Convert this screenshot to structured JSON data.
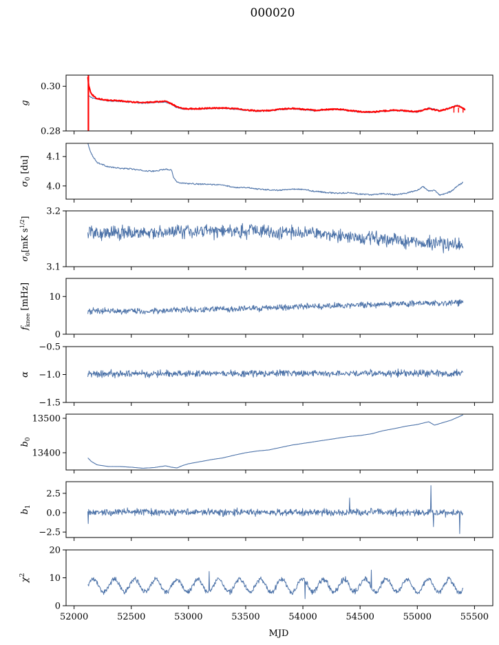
{
  "figure": {
    "title": "000020",
    "xlabel": "MJD",
    "xlim": [
      51930,
      55660
    ],
    "xticks": [
      52000,
      52500,
      53000,
      53500,
      54000,
      54500,
      55000,
      55500
    ],
    "xtick_labels": [
      "52000",
      "52500",
      "53000",
      "53500",
      "54000",
      "54500",
      "55000",
      "55500"
    ],
    "series_color": "#4c72a8",
    "fit_color": "#ff0000"
  },
  "chart_data": [
    {
      "id": "gain",
      "type": "line",
      "ylabel": "g",
      "ylim": [
        0.28,
        0.305
      ],
      "yticks": [
        0.28,
        0.3
      ],
      "ytick_labels": [
        "0.28",
        "0.30"
      ],
      "x_range": [
        52120,
        55420
      ],
      "series": [
        {
          "color": "#4c72a8",
          "x": [
            52120,
            52150,
            52200,
            52300,
            52400,
            52500,
            52600,
            52700,
            52800,
            52850,
            52900,
            52950,
            53000,
            53100,
            53200,
            53300,
            53400,
            53500,
            53600,
            53700,
            53800,
            53900,
            54000,
            54100,
            54200,
            54300,
            54400,
            54500,
            54600,
            54700,
            54800,
            54900,
            55000,
            55100,
            55150,
            55200,
            55300,
            55350,
            55400,
            55420
          ],
          "y": [
            0.296,
            0.295,
            0.2943,
            0.2935,
            0.2933,
            0.2928,
            0.2925,
            0.2928,
            0.293,
            0.292,
            0.2905,
            0.2898,
            0.2897,
            0.2898,
            0.29,
            0.2902,
            0.2898,
            0.2893,
            0.2889,
            0.289,
            0.2896,
            0.29,
            0.2895,
            0.289,
            0.2895,
            0.2897,
            0.289,
            0.2885,
            0.2883,
            0.2888,
            0.2892,
            0.2888,
            0.2885,
            0.2903,
            0.2897,
            0.289,
            0.2905,
            0.2915,
            0.29,
            0.2895
          ]
        },
        {
          "color": "#ff0000",
          "x": [
            52120,
            52130,
            52150,
            52200,
            52300,
            52400,
            52500,
            52600,
            52700,
            52800,
            52850,
            52900,
            52950,
            53000,
            53100,
            53200,
            53300,
            53400,
            53500,
            53600,
            53700,
            53800,
            53900,
            54000,
            54100,
            54200,
            54300,
            54400,
            54500,
            54600,
            54700,
            54800,
            54900,
            55000,
            55100,
            55200,
            55300,
            55350,
            55400,
            55420
          ],
          "y": [
            0.304,
            0.3,
            0.2965,
            0.2945,
            0.2937,
            0.2935,
            0.293,
            0.2927,
            0.293,
            0.2932,
            0.2922,
            0.2908,
            0.29,
            0.2899,
            0.29,
            0.2902,
            0.2903,
            0.29,
            0.2894,
            0.289,
            0.2891,
            0.2897,
            0.2901,
            0.2897,
            0.2892,
            0.2896,
            0.2898,
            0.2892,
            0.2886,
            0.2884,
            0.2889,
            0.2893,
            0.289,
            0.2886,
            0.29,
            0.289,
            0.2905,
            0.2915,
            0.29,
            0.2895
          ]
        }
      ]
    },
    {
      "id": "sigma0_du",
      "type": "line",
      "ylabel": "σ0 [du]",
      "ylim": [
        3.955,
        4.145
      ],
      "yticks": [
        4.0,
        4.1
      ],
      "ytick_labels": [
        "4.0",
        "4.1"
      ],
      "series": [
        {
          "color": "#4c72a8",
          "x": [
            52120,
            52150,
            52200,
            52300,
            52400,
            52500,
            52600,
            52700,
            52800,
            52850,
            52870,
            52900,
            53000,
            53100,
            53200,
            53300,
            53400,
            53500,
            53600,
            53700,
            53800,
            53900,
            54000,
            54100,
            54200,
            54300,
            54400,
            54500,
            54600,
            54700,
            54800,
            54900,
            55000,
            55050,
            55100,
            55150,
            55200,
            55300,
            55350,
            55400
          ],
          "y": [
            4.145,
            4.11,
            4.08,
            4.065,
            4.06,
            4.058,
            4.052,
            4.05,
            4.057,
            4.055,
            4.03,
            4.012,
            4.008,
            4.006,
            4.005,
            4.003,
            3.995,
            3.995,
            3.99,
            3.987,
            3.985,
            3.99,
            3.988,
            3.982,
            3.978,
            3.975,
            3.977,
            3.972,
            3.97,
            3.974,
            3.97,
            3.975,
            3.985,
            3.998,
            3.983,
            3.985,
            3.968,
            3.982,
            4.0,
            4.012
          ]
        }
      ]
    },
    {
      "id": "sigma0_mk",
      "type": "line",
      "ylabel": "σ0[mK s^1/2]",
      "ylim": [
        3.1,
        3.2
      ],
      "yticks": [
        3.1,
        3.2
      ],
      "ytick_labels": [
        "3.1",
        "3.2"
      ],
      "x_range": [
        52120,
        55400
      ],
      "trend": {
        "x": [
          52120,
          52500,
          53000,
          53500,
          54000,
          54500,
          55000,
          55400
        ],
        "y": [
          3.162,
          3.16,
          3.164,
          3.165,
          3.16,
          3.152,
          3.145,
          3.137
        ]
      },
      "noise_amplitude": 0.012
    },
    {
      "id": "fknee",
      "type": "line",
      "ylabel": "f_knee [mHz]",
      "ylim": [
        0,
        14.8
      ],
      "yticks": [
        0,
        10
      ],
      "ytick_labels": [
        "0",
        "10"
      ],
      "x_range": [
        52120,
        55400
      ],
      "trend": {
        "x": [
          52120,
          52500,
          53000,
          53500,
          54000,
          54500,
          55000,
          55400
        ],
        "y": [
          6.2,
          6.1,
          6.4,
          6.8,
          7.3,
          7.8,
          8.2,
          8.4
        ]
      },
      "noise_amplitude": 0.8
    },
    {
      "id": "alpha",
      "type": "line",
      "ylabel": "α",
      "ylim": [
        -1.5,
        -0.5
      ],
      "yticks": [
        -1.5,
        -1.0,
        -0.5
      ],
      "ytick_labels": [
        "−1.5",
        "−1.0",
        "−0.5"
      ],
      "x_range": [
        52120,
        55400
      ],
      "trend": {
        "x": [
          52120,
          55400
        ],
        "y": [
          -0.985,
          -0.975
        ]
      },
      "noise_amplitude": 0.06
    },
    {
      "id": "b0",
      "type": "line",
      "ylabel": "b0",
      "ylim": [
        13350,
        13512
      ],
      "yticks": [
        13400,
        13500
      ],
      "ytick_labels": [
        "13400",
        "13500"
      ],
      "series": [
        {
          "color": "#4c72a8",
          "x": [
            52120,
            52150,
            52200,
            52300,
            52400,
            52500,
            52600,
            52700,
            52800,
            52850,
            52900,
            52950,
            53000,
            53100,
            53200,
            53300,
            53400,
            53500,
            53600,
            53700,
            53800,
            53900,
            54000,
            54100,
            54200,
            54300,
            54400,
            54500,
            54600,
            54700,
            54800,
            54900,
            55000,
            55050,
            55100,
            55150,
            55200,
            55300,
            55400
          ],
          "y": [
            13385,
            13375,
            13365,
            13360,
            13360,
            13358,
            13355,
            13357,
            13362,
            13358,
            13356,
            13363,
            13368,
            13374,
            13380,
            13385,
            13393,
            13400,
            13405,
            13408,
            13415,
            13422,
            13427,
            13432,
            13437,
            13442,
            13447,
            13450,
            13455,
            13464,
            13470,
            13477,
            13482,
            13486,
            13490,
            13480,
            13485,
            13495,
            13510
          ]
        }
      ]
    },
    {
      "id": "b1",
      "type": "line",
      "ylabel": "b1",
      "ylim": [
        -3.2,
        4.0
      ],
      "yticks": [
        -2.5,
        0.0,
        2.5
      ],
      "ytick_labels": [
        "−2.5",
        "0.0",
        "2.5"
      ],
      "x_range": [
        52120,
        55400
      ],
      "trend": {
        "x": [
          52120,
          55400
        ],
        "y": [
          0.1,
          0.0
        ]
      },
      "noise_amplitude": 0.45,
      "spikes": [
        {
          "x": 52125,
          "y": -1.4
        },
        {
          "x": 54410,
          "y": 1.9
        },
        {
          "x": 55120,
          "y": 3.5
        },
        {
          "x": 55140,
          "y": -1.8
        },
        {
          "x": 55370,
          "y": -2.7
        }
      ]
    },
    {
      "id": "chi2",
      "type": "line",
      "ylabel": "χ2",
      "ylim": [
        0,
        20
      ],
      "yticks": [
        0,
        10,
        20
      ],
      "ytick_labels": [
        "0",
        "10",
        "20"
      ],
      "x_range": [
        52120,
        55400
      ],
      "oscillation": {
        "mean": 7.2,
        "amplitude": 2.3,
        "period_days": 183
      },
      "noise_amplitude": 0.9,
      "spikes": [
        {
          "x": 53180,
          "y": 12.3
        },
        {
          "x": 54600,
          "y": 12.8
        },
        {
          "x": 54020,
          "y": 2.5
        }
      ]
    }
  ]
}
